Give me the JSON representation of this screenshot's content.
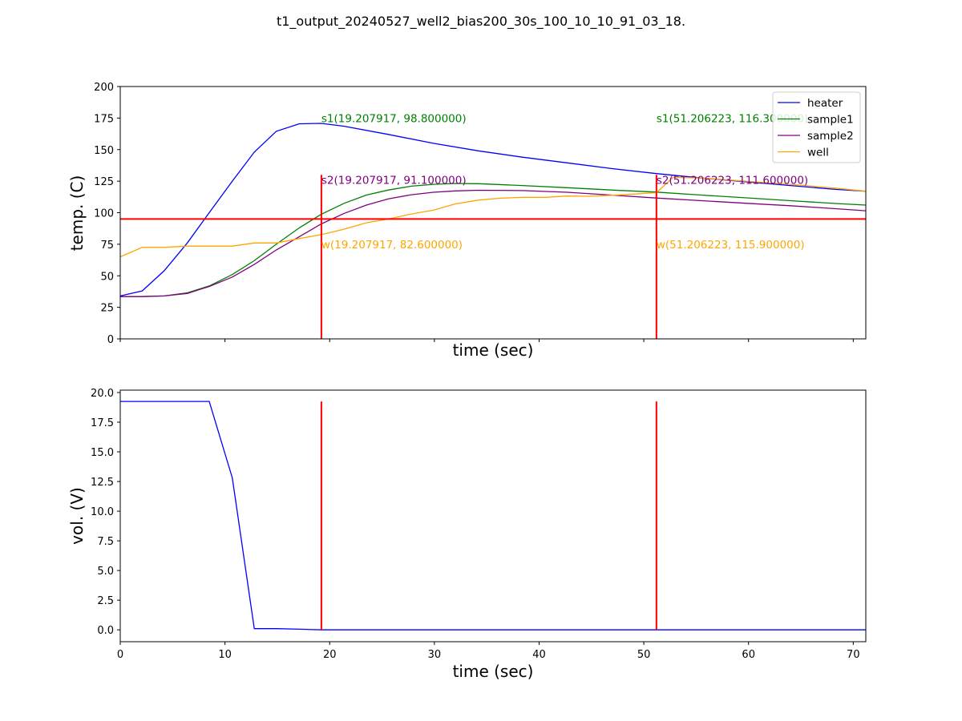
{
  "figure": {
    "title": "t1_output_20240527_well2_bias200_30s_100_10_10_91_03_18."
  },
  "colors": {
    "heater": "#0000ff",
    "sample1": "#008000",
    "sample2": "#800080",
    "well": "#ffa500",
    "markers": "#ff0000"
  },
  "chart_data": [
    {
      "type": "line",
      "xlabel": "time (sec)",
      "ylabel": "temp. (C)",
      "xlim": [
        0,
        71.2
      ],
      "ylim": [
        0,
        200
      ],
      "show_x_tick_labels": false,
      "yticks": [
        0,
        25,
        50,
        75,
        100,
        125,
        150,
        175,
        200
      ],
      "y_tick_labels": [
        "0",
        "25",
        "50",
        "75",
        "100",
        "125",
        "150",
        "175",
        "200"
      ],
      "legend": {
        "placement": "top-right"
      },
      "series": [
        {
          "name": "heater",
          "color": "#0000ff",
          "x": [
            0,
            2.1,
            4.2,
            6.4,
            8.5,
            10.7,
            12.8,
            14.9,
            17.1,
            19.2,
            21.4,
            25.6,
            29.9,
            34.2,
            38.4,
            42.7,
            46.9,
            51.2,
            55.5,
            59.7,
            64.0,
            68.3,
            71.2
          ],
          "y": [
            34,
            38,
            54,
            76,
            100,
            125,
            148,
            164.5,
            170.5,
            170.8,
            168.5,
            162,
            155,
            149,
            144,
            139.5,
            135,
            131,
            127.5,
            124.5,
            121.5,
            118.5,
            117
          ]
        },
        {
          "name": "sample1",
          "color": "#008000",
          "x": [
            0,
            2.1,
            4.2,
            6.4,
            8.5,
            10.7,
            12.8,
            14.9,
            17.1,
            19.2,
            21.4,
            23.5,
            25.6,
            27.8,
            29.9,
            32.0,
            34.2,
            38.4,
            42.7,
            46.9,
            51.2,
            55.5,
            59.7,
            64.0,
            68.3,
            71.2
          ],
          "y": [
            33.5,
            33.5,
            34,
            36.5,
            42,
            51,
            62,
            75,
            88,
            98.8,
            107.5,
            114,
            118,
            121,
            122.5,
            123.2,
            123,
            121.5,
            119.8,
            118,
            116.3,
            114,
            111.8,
            109.5,
            107.3,
            106
          ]
        },
        {
          "name": "sample2",
          "color": "#800080",
          "x": [
            0,
            2.1,
            4.2,
            6.4,
            8.5,
            10.7,
            12.8,
            14.9,
            17.1,
            19.2,
            21.4,
            23.5,
            25.6,
            27.8,
            29.9,
            32.0,
            34.2,
            38.4,
            42.7,
            46.9,
            51.2,
            55.5,
            59.7,
            64.0,
            68.3,
            71.2
          ],
          "y": [
            33.5,
            33.5,
            34,
            36,
            41.5,
            49,
            59,
            70.5,
            81,
            91.1,
            99.5,
            106,
            111,
            114.2,
            116.2,
            117.3,
            117.8,
            117.5,
            116.2,
            114,
            111.6,
            109.5,
            107.5,
            105.5,
            103.2,
            101.5
          ]
        },
        {
          "name": "well",
          "color": "#ffa500",
          "x": [
            0,
            2.1,
            4.2,
            6.4,
            8.5,
            10.7,
            12.8,
            14.9,
            17.1,
            19.2,
            21.4,
            23.5,
            25.6,
            27.8,
            29.9,
            32.0,
            34.2,
            36.3,
            38.4,
            40.6,
            42.7,
            44.8,
            46.9,
            49.1,
            51.2,
            52.8,
            55.5,
            59.7,
            64.0,
            68.3,
            71.2
          ],
          "y": [
            65,
            72.5,
            72.5,
            73.5,
            73.5,
            73.5,
            76,
            76,
            79.5,
            82.6,
            87,
            92,
            95,
            99,
            102,
            107,
            110,
            111.5,
            112.2,
            112.2,
            113.2,
            113,
            113.8,
            114.8,
            115.9,
            128,
            127.5,
            125,
            122.5,
            119.5,
            117
          ]
        }
      ],
      "hlines": [
        {
          "y": 95,
          "color": "#ff0000"
        }
      ],
      "vlines": [
        {
          "x": 19.207917,
          "ymin": 0,
          "ymax": 130,
          "color": "#ff0000"
        },
        {
          "x": 51.206223,
          "ymin": 0,
          "ymax": 130,
          "color": "#ff0000"
        }
      ],
      "annotations": [
        {
          "text": "s1(19.207917, 98.800000)",
          "x": 19.207917,
          "y": 175,
          "color": "#008000"
        },
        {
          "text": "s2(19.207917, 91.100000)",
          "x": 19.207917,
          "y": 126,
          "color": "#800080"
        },
        {
          "text": "w(19.207917, 82.600000)",
          "x": 19.207917,
          "y": 75,
          "color": "#ffa500"
        },
        {
          "text": "s1(51.206223, 116.300000)",
          "x": 51.206223,
          "y": 175,
          "color": "#008000"
        },
        {
          "text": "s2(51.206223, 111.600000)",
          "x": 51.206223,
          "y": 126,
          "color": "#800080"
        },
        {
          "text": "w(51.206223, 115.900000)",
          "x": 51.206223,
          "y": 75,
          "color": "#ffa500"
        }
      ]
    },
    {
      "type": "line",
      "xlabel": "time (sec)",
      "ylabel": "vol. (V)",
      "xlim": [
        0,
        71.2
      ],
      "ylim": [
        -1,
        20.2
      ],
      "xticks": [
        0,
        10,
        20,
        30,
        40,
        50,
        60,
        70
      ],
      "x_tick_labels": [
        "0",
        "10",
        "20",
        "30",
        "40",
        "50",
        "60",
        "70"
      ],
      "yticks": [
        0,
        2.5,
        5,
        7.5,
        10,
        12.5,
        15,
        17.5,
        20
      ],
      "y_tick_labels": [
        "0.0",
        "2.5",
        "5.0",
        "7.5",
        "10.0",
        "12.5",
        "15.0",
        "17.5",
        "20.0"
      ],
      "series": [
        {
          "color": "#0000ff",
          "x": [
            0,
            2.1,
            4.2,
            6.4,
            8.5,
            10.7,
            12.8,
            14.9,
            17.1,
            19.2,
            21.4,
            71.2
          ],
          "y": [
            19.25,
            19.25,
            19.25,
            19.25,
            19.25,
            12.8,
            0.1,
            0.1,
            0.05,
            0.0,
            0.0,
            0.0
          ]
        }
      ],
      "vlines": [
        {
          "x": 19.207917,
          "ymin": 0,
          "ymax": 19.25,
          "color": "#ff0000"
        },
        {
          "x": 51.206223,
          "ymin": 0,
          "ymax": 19.25,
          "color": "#ff0000"
        }
      ]
    }
  ]
}
